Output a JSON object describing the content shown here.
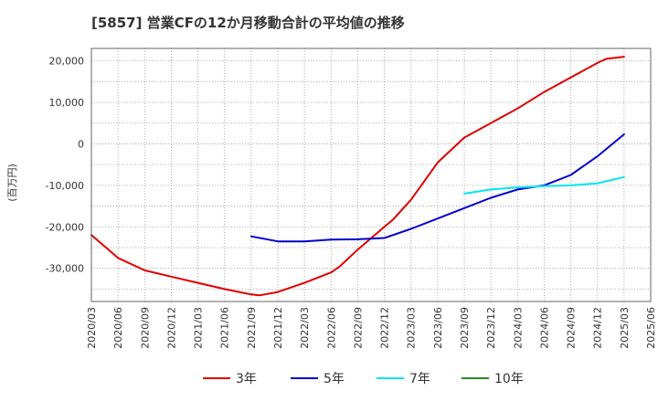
{
  "chart_data": {
    "type": "line",
    "title": "[5857]  営業CFの12か月移動合計の平均値の推移",
    "ylabel": "(百万円)",
    "xlabel": "",
    "ylim": [
      -38000,
      23000
    ],
    "yticks": [
      20000,
      10000,
      0,
      -10000,
      -20000,
      -30000
    ],
    "ytick_labels": [
      "20,000",
      "10,000",
      "0",
      "-10,000",
      "-20,000",
      "-30,000"
    ],
    "xticks": [
      "2020/03",
      "2020/06",
      "2020/09",
      "2020/12",
      "2021/03",
      "2021/06",
      "2021/09",
      "2021/12",
      "2022/03",
      "2022/06",
      "2022/09",
      "2022/12",
      "2023/03",
      "2023/06",
      "2023/09",
      "2023/12",
      "2024/03",
      "2024/06",
      "2024/09",
      "2024/12",
      "2025/03",
      "2025/06"
    ],
    "grid": true,
    "legend_position": "bottom",
    "series": [
      {
        "name": "3年",
        "color": "#dd0000",
        "points": [
          [
            "2020/03",
            -22000
          ],
          [
            "2020/06",
            -27500
          ],
          [
            "2020/09",
            -30500
          ],
          [
            "2020/12",
            -32000
          ],
          [
            "2021/03",
            -33500
          ],
          [
            "2021/06",
            -35000
          ],
          [
            "2021/09",
            -36300
          ],
          [
            "2021/10",
            -36500
          ],
          [
            "2021/12",
            -35700
          ],
          [
            "2022/03",
            -33500
          ],
          [
            "2022/06",
            -31000
          ],
          [
            "2022/07",
            -29500
          ],
          [
            "2022/09",
            -25500
          ],
          [
            "2022/12",
            -20000
          ],
          [
            "2023/01",
            -18200
          ],
          [
            "2023/03",
            -13500
          ],
          [
            "2023/06",
            -4500
          ],
          [
            "2023/09",
            1500
          ],
          [
            "2023/12",
            5000
          ],
          [
            "2024/03",
            8500
          ],
          [
            "2024/06",
            12500
          ],
          [
            "2024/09",
            16000
          ],
          [
            "2024/12",
            19500
          ],
          [
            "2025/01",
            20500
          ],
          [
            "2025/03",
            21000
          ]
        ]
      },
      {
        "name": "5年",
        "color": "#0000cc",
        "points": [
          [
            "2021/09",
            -22300
          ],
          [
            "2021/12",
            -23500
          ],
          [
            "2022/03",
            -23500
          ],
          [
            "2022/06",
            -23100
          ],
          [
            "2022/09",
            -23000
          ],
          [
            "2022/12",
            -22700
          ],
          [
            "2023/03",
            -20500
          ],
          [
            "2023/06",
            -18000
          ],
          [
            "2023/09",
            -15500
          ],
          [
            "2023/12",
            -13000
          ],
          [
            "2024/03",
            -11000
          ],
          [
            "2024/06",
            -10000
          ],
          [
            "2024/09",
            -7500
          ],
          [
            "2024/12",
            -3000
          ],
          [
            "2025/03",
            2300
          ]
        ]
      },
      {
        "name": "7年",
        "color": "#00e5ee",
        "points": [
          [
            "2023/09",
            -12000
          ],
          [
            "2023/12",
            -11000
          ],
          [
            "2024/03",
            -10500
          ],
          [
            "2024/06",
            -10200
          ],
          [
            "2024/09",
            -10000
          ],
          [
            "2024/12",
            -9500
          ],
          [
            "2025/03",
            -8000
          ]
        ]
      },
      {
        "name": "10年",
        "color": "#228b22",
        "points": []
      }
    ]
  }
}
